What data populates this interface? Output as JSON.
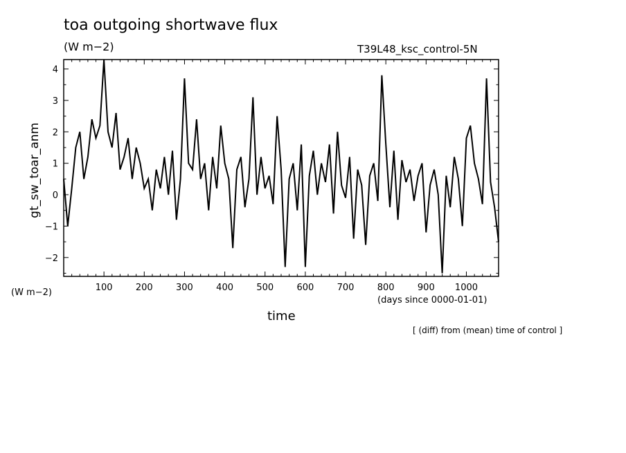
{
  "chart_data": {
    "type": "line",
    "title": "toa outgoing shortwave flux",
    "units_top": "(W m−2)",
    "case_label": "T39L48_ksc_control-5N",
    "ylabel": "gt_sw_toar_anm",
    "y_units_left": "(W m−2)",
    "xlabel": "time",
    "x_units": "(days since 0000-01-01)",
    "note": "[ (diff) from (mean) time of control ]",
    "xlim": [
      0,
      1080
    ],
    "ylim": [
      -2.6,
      4.3
    ],
    "xticks": [
      100,
      200,
      300,
      400,
      500,
      600,
      700,
      800,
      900,
      1000
    ],
    "yticks": [
      -2,
      -1,
      0,
      1,
      2,
      3,
      4
    ],
    "ytick_labels": [
      "−2",
      "−1",
      "0",
      "1",
      "2",
      "3",
      "4"
    ],
    "grid": false,
    "line_color": "#000000",
    "series": [
      {
        "x": [
          0,
          10,
          20,
          30,
          40,
          50,
          60,
          70,
          80,
          90,
          100,
          110,
          120,
          130,
          140,
          150,
          160,
          170,
          180,
          190,
          200,
          210,
          220,
          230,
          240,
          250,
          260,
          270,
          280,
          290,
          300,
          310,
          320,
          330,
          340,
          350,
          360,
          370,
          380,
          390,
          400,
          410,
          420,
          430,
          440,
          450,
          460,
          470,
          480,
          490,
          500,
          510,
          520,
          530,
          540,
          550,
          560,
          570,
          580,
          590,
          600,
          610,
          620,
          630,
          640,
          650,
          660,
          670,
          680,
          690,
          700,
          710,
          720,
          730,
          740,
          750,
          760,
          770,
          780,
          790,
          800,
          810,
          820,
          830,
          840,
          850,
          860,
          870,
          880,
          890,
          900,
          910,
          920,
          930,
          940,
          950,
          960,
          970,
          980,
          990,
          1000,
          1010,
          1020,
          1030,
          1040,
          1050,
          1060,
          1070,
          1080
        ],
        "values": [
          0.5,
          -1.0,
          0.2,
          1.5,
          2.0,
          0.5,
          1.2,
          2.4,
          1.8,
          2.2,
          4.3,
          2.0,
          1.5,
          2.6,
          0.8,
          1.2,
          1.8,
          0.5,
          1.5,
          1.0,
          0.2,
          0.5,
          -0.5,
          0.8,
          0.2,
          1.2,
          0.0,
          1.4,
          -0.8,
          0.5,
          3.7,
          1.0,
          0.8,
          2.4,
          0.5,
          1.0,
          -0.5,
          1.2,
          0.2,
          2.2,
          1.0,
          0.5,
          -1.7,
          0.8,
          1.2,
          -0.4,
          0.5,
          3.1,
          0.0,
          1.2,
          0.2,
          0.6,
          -0.3,
          2.5,
          0.8,
          -2.3,
          0.5,
          1.0,
          -0.5,
          1.6,
          -2.3,
          0.6,
          1.4,
          0.0,
          1.0,
          0.4,
          1.6,
          -0.6,
          2.0,
          0.3,
          -0.1,
          1.2,
          -1.4,
          0.8,
          0.3,
          -1.6,
          0.6,
          1.0,
          -0.2,
          3.8,
          1.6,
          -0.4,
          1.4,
          -0.8,
          1.1,
          0.4,
          0.8,
          -0.2,
          0.6,
          1.0,
          -1.2,
          0.3,
          0.8,
          0.0,
          -2.5,
          0.6,
          -0.4,
          1.2,
          0.5,
          -1.0,
          1.8,
          2.2,
          1.0,
          0.5,
          -0.3,
          3.7,
          0.4,
          -0.4,
          -1.5
        ]
      }
    ]
  }
}
